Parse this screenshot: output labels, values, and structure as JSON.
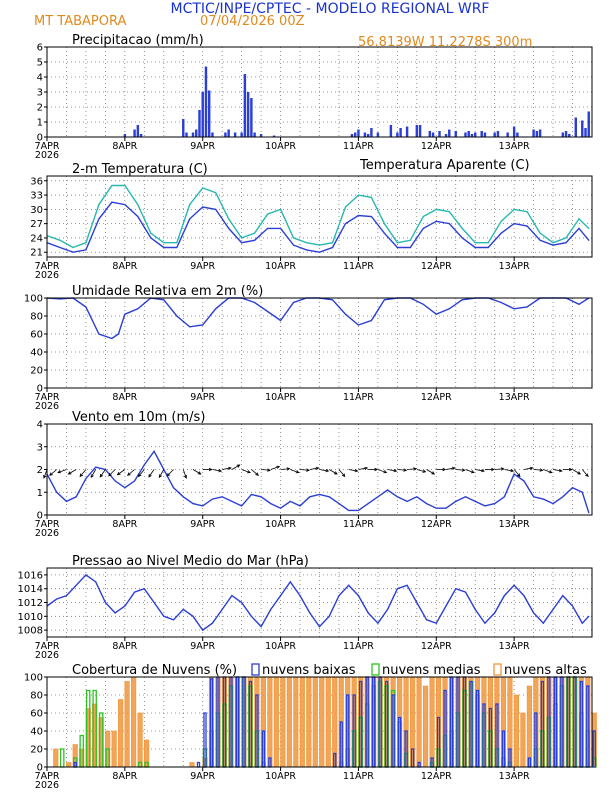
{
  "header": {
    "institution_title": "MCTIC/INPE/CPTEC - MODELO REGIONAL WRF",
    "location": "MT TABAPORA",
    "run_date": "07/04/2026 00Z",
    "coordinates": "56.8139W 11.2278S 300m"
  },
  "colors": {
    "title_blue": "#1a32d0",
    "location_orange": "#e08a1e",
    "series_blue": "#2b3fd6",
    "series_cyan": "#27b8b0",
    "series_black": "#000000",
    "cloud_low": "#2b3fd6",
    "cloud_mid": "#2fc224",
    "cloud_high": "#f0943a",
    "grid": "#7a7a7a"
  },
  "time_axis": {
    "hours": 168,
    "ticks": [
      {
        "hour": 0,
        "label": "7APR",
        "year": "2026"
      },
      {
        "hour": 24,
        "label": "8APR"
      },
      {
        "hour": 48,
        "label": "9APR"
      },
      {
        "hour": 72,
        "label": "10APR"
      },
      {
        "hour": 96,
        "label": "11APR"
      },
      {
        "hour": 120,
        "label": "12APR"
      },
      {
        "hour": 144,
        "label": "13APR"
      }
    ]
  },
  "chart_data": [
    {
      "type": "bar",
      "title": "Precipitacao (mm/h)",
      "ylim": [
        0,
        6
      ],
      "yticks": [
        0,
        1,
        2,
        3,
        4,
        5,
        6
      ],
      "x_hours": [
        24,
        27,
        28,
        29,
        42,
        43,
        45,
        46,
        47,
        48,
        49,
        50,
        51,
        55,
        56,
        58,
        60,
        61,
        62,
        63,
        64,
        66,
        70,
        94,
        95,
        96,
        98,
        99,
        100,
        102,
        106,
        108,
        109,
        111,
        114,
        115,
        118,
        119,
        121,
        123,
        124,
        126,
        129,
        130,
        131,
        132,
        134,
        135,
        138,
        139,
        142,
        144,
        145,
        150,
        151,
        152,
        159,
        160,
        161,
        163,
        165,
        166,
        167
      ],
      "values": [
        0.2,
        0.5,
        0.8,
        0.2,
        1.2,
        0.3,
        0.3,
        0.5,
        1.8,
        3.0,
        4.7,
        3.1,
        0.3,
        0.3,
        0.5,
        0.3,
        0.3,
        4.2,
        3.0,
        2.6,
        0.3,
        0.2,
        0.1,
        0.2,
        0.3,
        0.5,
        0.3,
        0.2,
        0.6,
        0.3,
        0.8,
        0.3,
        0.6,
        0.7,
        0.8,
        0.8,
        0.4,
        0.3,
        0.4,
        0.2,
        0.5,
        0.4,
        0.3,
        0.4,
        0.2,
        0.3,
        0.4,
        0.3,
        0.3,
        0.4,
        0.3,
        0.7,
        0.3,
        0.5,
        0.4,
        0.5,
        0.3,
        0.4,
        0.2,
        1.3,
        1.1,
        0.6,
        1.7
      ],
      "xlabel": "",
      "ylabel": ""
    },
    {
      "type": "line",
      "title": "2-m Temperatura (C)",
      "title_right": "Temperatura Aparente (C)",
      "ylim": [
        20,
        37
      ],
      "yticks": [
        21,
        24,
        27,
        30,
        33,
        36
      ],
      "series": [
        {
          "name": "2-m Temperatura",
          "color": "#2b3fd6",
          "x": [
            0,
            4,
            8,
            12,
            16,
            20,
            24,
            28,
            32,
            36,
            40,
            44,
            48,
            52,
            56,
            60,
            64,
            68,
            72,
            76,
            80,
            84,
            88,
            92,
            96,
            100,
            104,
            108,
            112,
            116,
            120,
            124,
            128,
            132,
            136,
            140,
            144,
            148,
            152,
            156,
            160,
            164,
            167
          ],
          "values": [
            23,
            22,
            21,
            21.5,
            28,
            31.5,
            31,
            28.5,
            24,
            22,
            22,
            28,
            30.5,
            30,
            26,
            23,
            23.5,
            26,
            26,
            22.5,
            21.5,
            21,
            22,
            27,
            28.7,
            28.5,
            25,
            22,
            22,
            26,
            27.5,
            27,
            24,
            22,
            22,
            25,
            27,
            26.5,
            23.5,
            22.5,
            23,
            26,
            23.5
          ]
        },
        {
          "name": "Temperatura Aparente",
          "color": "#27b8b0",
          "x": [
            0,
            4,
            8,
            12,
            16,
            20,
            24,
            28,
            32,
            36,
            40,
            44,
            48,
            52,
            56,
            60,
            64,
            68,
            72,
            76,
            80,
            84,
            88,
            92,
            96,
            100,
            104,
            108,
            112,
            116,
            120,
            124,
            128,
            132,
            136,
            140,
            144,
            148,
            152,
            156,
            160,
            164,
            167
          ],
          "values": [
            24.5,
            23.5,
            22,
            23,
            31,
            35,
            35,
            31,
            25,
            23,
            23,
            31,
            34.5,
            33.5,
            28,
            24,
            25,
            29,
            30,
            24,
            23,
            22.5,
            23,
            30.5,
            33,
            32.5,
            27,
            23,
            23.5,
            28.5,
            30,
            29.5,
            26,
            23,
            23,
            27.5,
            30,
            29.5,
            25,
            23,
            24,
            28,
            26
          ]
        }
      ],
      "xlabel": "",
      "ylabel": ""
    },
    {
      "type": "line",
      "title": "Umidade Relativa em 2m (%)",
      "ylim": [
        0,
        100
      ],
      "yticks": [
        0,
        20,
        40,
        60,
        80,
        100
      ],
      "series": [
        {
          "name": "Umidade Relativa",
          "color": "#2b3fd6",
          "x": [
            0,
            4,
            8,
            12,
            16,
            20,
            22,
            24,
            28,
            32,
            36,
            40,
            44,
            48,
            52,
            56,
            60,
            64,
            68,
            72,
            76,
            80,
            84,
            88,
            92,
            96,
            100,
            104,
            108,
            112,
            116,
            120,
            124,
            128,
            132,
            136,
            140,
            144,
            148,
            152,
            156,
            160,
            164,
            167
          ],
          "values": [
            100,
            99,
            100,
            90,
            60,
            55,
            60,
            82,
            88,
            100,
            98,
            80,
            68,
            70,
            88,
            100,
            100,
            95,
            85,
            75,
            95,
            100,
            100,
            98,
            82,
            70,
            75,
            98,
            100,
            100,
            93,
            82,
            88,
            98,
            100,
            100,
            95,
            88,
            90,
            100,
            100,
            100,
            93,
            100
          ]
        }
      ],
      "xlabel": "",
      "ylabel": ""
    },
    {
      "type": "line",
      "title": "Vento em 10m (m/s)",
      "ylim": [
        0,
        4
      ],
      "yticks": [
        0,
        1,
        2,
        3,
        4
      ],
      "series": [
        {
          "name": "Velocidade do vento",
          "color": "#2b3fd6",
          "x": [
            0,
            3,
            6,
            9,
            12,
            15,
            18,
            21,
            24,
            27,
            30,
            33,
            36,
            39,
            42,
            45,
            48,
            51,
            54,
            57,
            60,
            63,
            66,
            69,
            72,
            75,
            78,
            81,
            84,
            87,
            90,
            93,
            96,
            99,
            102,
            105,
            108,
            111,
            114,
            117,
            120,
            123,
            126,
            129,
            132,
            135,
            138,
            141,
            144,
            147,
            150,
            153,
            156,
            159,
            162,
            165,
            167
          ],
          "values": [
            1.8,
            1.0,
            0.6,
            0.8,
            1.6,
            2.1,
            2.0,
            1.5,
            1.2,
            1.5,
            2.2,
            2.8,
            2.0,
            1.2,
            0.8,
            0.5,
            0.4,
            0.7,
            0.8,
            0.6,
            0.4,
            0.9,
            0.8,
            0.5,
            0.3,
            0.6,
            0.4,
            0.8,
            0.9,
            0.8,
            0.5,
            0.2,
            0.2,
            0.5,
            0.8,
            1.1,
            0.8,
            0.6,
            0.8,
            0.5,
            0.3,
            0.3,
            0.6,
            0.8,
            0.6,
            0.4,
            0.5,
            0.8,
            1.8,
            1.5,
            0.8,
            0.7,
            0.5,
            0.8,
            1.2,
            1.0,
            0.1
          ]
        },
        {
          "name": "Direcao do vento",
          "color": "#000000",
          "x": [
            0,
            3,
            6,
            9,
            12,
            15,
            18,
            21,
            24,
            27,
            30,
            33,
            36,
            39,
            42,
            45,
            48,
            51,
            54,
            57,
            60,
            63,
            66,
            69,
            72,
            75,
            78,
            81,
            84,
            87,
            90,
            93,
            96,
            99,
            102,
            105,
            108,
            111,
            114,
            117,
            120,
            123,
            126,
            129,
            132,
            135,
            138,
            141,
            144,
            147,
            150,
            153,
            156,
            159,
            162,
            165
          ],
          "dir_deg": [
            200,
            230,
            250,
            240,
            220,
            210,
            215,
            225,
            235,
            230,
            220,
            215,
            210,
            225,
            160,
            120,
            90,
            100,
            80,
            60,
            110,
            130,
            95,
            70,
            85,
            110,
            95,
            80,
            100,
            120,
            140,
            100,
            80,
            90,
            110,
            100,
            95,
            85,
            105,
            120,
            90,
            80,
            95,
            110,
            100,
            90,
            85,
            100,
            140,
            80,
            95,
            110,
            100,
            90,
            120,
            140
          ]
        }
      ],
      "xlabel": "",
      "ylabel": ""
    },
    {
      "type": "line",
      "title": "Pressao ao Nivel Medio do Mar (hPa)",
      "ylim": [
        1007,
        1017
      ],
      "yticks": [
        1008,
        1010,
        1012,
        1014,
        1016
      ],
      "series": [
        {
          "name": "Pressao",
          "color": "#2b3fd6",
          "x": [
            0,
            3,
            6,
            9,
            12,
            15,
            18,
            21,
            24,
            27,
            30,
            33,
            36,
            39,
            42,
            45,
            48,
            51,
            54,
            57,
            60,
            63,
            66,
            69,
            72,
            75,
            78,
            81,
            84,
            87,
            90,
            93,
            96,
            99,
            102,
            105,
            108,
            111,
            114,
            117,
            120,
            123,
            126,
            129,
            132,
            135,
            138,
            141,
            144,
            147,
            150,
            153,
            156,
            159,
            162,
            165,
            167
          ],
          "values": [
            1011.5,
            1012.5,
            1013,
            1014.5,
            1016,
            1015,
            1012,
            1010.5,
            1011.5,
            1013.5,
            1014,
            1012,
            1010,
            1009.5,
            1011,
            1010,
            1008,
            1009,
            1011,
            1013,
            1012,
            1010,
            1008.5,
            1011,
            1013,
            1015,
            1013,
            1010.5,
            1008.5,
            1010,
            1013,
            1014.5,
            1013,
            1010.5,
            1009,
            1011,
            1014,
            1014.5,
            1012,
            1009.5,
            1009,
            1011.5,
            1014,
            1013.5,
            1011,
            1009,
            1010.5,
            1013,
            1014.5,
            1013,
            1010.5,
            1009,
            1011,
            1013,
            1011.5,
            1009,
            1010
          ]
        }
      ],
      "xlabel": "",
      "ylabel": ""
    },
    {
      "type": "bar",
      "title": "Cobertura de Nuvens (%)",
      "ylim": [
        0,
        100
      ],
      "yticks": [
        0,
        20,
        40,
        60,
        80,
        100
      ],
      "legend": [
        {
          "label": "nuvens baixas",
          "color": "#2b3fd6"
        },
        {
          "label": "nuvens medias",
          "color": "#2fc224"
        },
        {
          "label": "nuvens altas",
          "color": "#f0943a"
        }
      ],
      "x_hours_step": 2,
      "series": [
        {
          "name": "nuvens baixas",
          "values": [
            0,
            0,
            0,
            0,
            5,
            0,
            0,
            0,
            0,
            0,
            0,
            0,
            0,
            0,
            0,
            0,
            0,
            0,
            0,
            0,
            0,
            0,
            0,
            5,
            60,
            98,
            100,
            100,
            100,
            100,
            100,
            95,
            80,
            40,
            10,
            0,
            0,
            0,
            0,
            0,
            0,
            0,
            0,
            0,
            15,
            50,
            80,
            80,
            95,
            100,
            100,
            100,
            95,
            80,
            55,
            40,
            20,
            5,
            0,
            10,
            55,
            85,
            100,
            100,
            100,
            95,
            85,
            70,
            65,
            70,
            40,
            20,
            0,
            0,
            10,
            60,
            95,
            100,
            100,
            100,
            100,
            100,
            95,
            90,
            40
          ]
        },
        {
          "name": "nuvens medias",
          "values": [
            0,
            0,
            20,
            0,
            10,
            35,
            85,
            85,
            60,
            20,
            0,
            0,
            0,
            0,
            5,
            5,
            0,
            0,
            0,
            0,
            0,
            0,
            0,
            0,
            20,
            40,
            60,
            70,
            90,
            100,
            100,
            90,
            40,
            5,
            0,
            0,
            0,
            0,
            0,
            0,
            0,
            0,
            0,
            0,
            0,
            5,
            20,
            40,
            55,
            70,
            90,
            95,
            90,
            85,
            50,
            15,
            0,
            0,
            0,
            5,
            20,
            35,
            40,
            60,
            85,
            95,
            80,
            60,
            40,
            20,
            10,
            5,
            0,
            0,
            0,
            20,
            40,
            55,
            70,
            90,
            100,
            100,
            60,
            40,
            10
          ]
        },
        {
          "name": "nuvens altas",
          "values": [
            0,
            20,
            0,
            5,
            25,
            20,
            65,
            70,
            55,
            40,
            40,
            75,
            95,
            100,
            60,
            30,
            0,
            0,
            0,
            0,
            0,
            0,
            5,
            0,
            10,
            100,
            100,
            100,
            100,
            100,
            100,
            100,
            100,
            100,
            100,
            100,
            100,
            100,
            100,
            100,
            100,
            100,
            100,
            100,
            100,
            100,
            100,
            100,
            100,
            100,
            100,
            100,
            100,
            100,
            100,
            100,
            100,
            100,
            90,
            100,
            100,
            100,
            100,
            100,
            100,
            100,
            100,
            100,
            100,
            100,
            100,
            100,
            80,
            60,
            90,
            100,
            100,
            100,
            100,
            100,
            100,
            100,
            100,
            100,
            60
          ]
        }
      ],
      "xlabel": "",
      "ylabel": ""
    }
  ]
}
